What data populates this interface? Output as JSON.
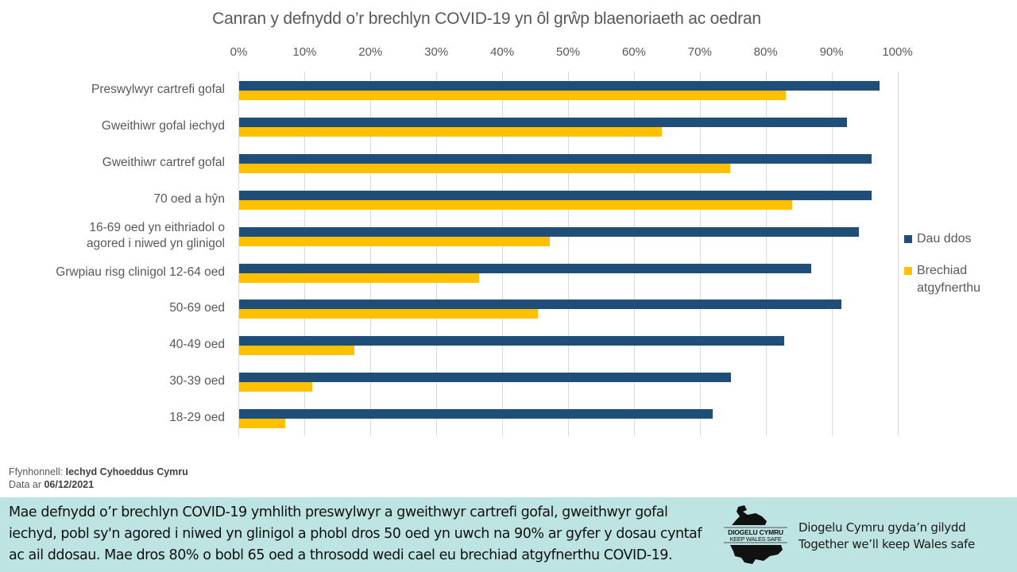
{
  "chart_data": {
    "type": "bar",
    "orientation": "horizontal",
    "title": "Canran y defnydd o’r brechlyn COVID-19 yn ôl grŵp blaenoriaeth ac oedran",
    "xlabel": "",
    "ylabel": "",
    "xlim": [
      0,
      100
    ],
    "x_ticks": [
      "0%",
      "10%",
      "20%",
      "30%",
      "40%",
      "50%",
      "60%",
      "70%",
      "80%",
      "90%",
      "100%"
    ],
    "x_axis_position": "top",
    "grid": true,
    "legend_position": "right",
    "categories": [
      "Preswylwyr cartrefi gofal",
      "Gweithiwr gofal iechyd",
      "Gweithiwr cartref gofal",
      "70 oed a hŷn",
      "16-69 oed yn eithriadol o agored i niwed yn glinigol",
      "Grwpiau risg clinigol 12-64 oed",
      "50-69 oed",
      "40-49 oed",
      "30-39 oed",
      "18-29 oed"
    ],
    "series": [
      {
        "name": "Dau ddos",
        "color": "#1f4e79",
        "values": [
          97.2,
          92.3,
          96.0,
          96.0,
          94.1,
          86.8,
          91.4,
          82.8,
          74.7,
          71.9
        ]
      },
      {
        "name": "Brechiad atgyfnerthu",
        "color": "#ffc000",
        "values": [
          83.0,
          64.2,
          74.5,
          84.0,
          47.2,
          36.4,
          45.3,
          17.5,
          11.1,
          7.0
        ]
      }
    ]
  },
  "category_labels": [
    [
      "Preswylwyr cartrefi gofal"
    ],
    [
      "Gweithiwr gofal iechyd"
    ],
    [
      "Gweithiwr cartref gofal"
    ],
    [
      "70 oed a hŷn"
    ],
    [
      "16-69 oed yn eithriadol o",
      "agored i niwed yn glinigol"
    ],
    [
      "Grwpiau risg clinigol 12-64 oed"
    ],
    [
      "50-69 oed"
    ],
    [
      "40-49 oed"
    ],
    [
      "30-39 oed"
    ],
    [
      "18-29 oed"
    ]
  ],
  "legend": {
    "items": [
      {
        "label": "Dau ddos",
        "color": "#1f4e79"
      },
      {
        "label": "Brechiad atgyfnerthu",
        "color": "#ffc000"
      }
    ]
  },
  "source": {
    "label": "Ffynhonnell:",
    "value": "Iechyd Cyhoeddus Cymru",
    "date_label": "Data ar",
    "date_value": "06/12/2021"
  },
  "footer": {
    "summary": "Mae defnydd o’r brechlyn COVID-19 ymhlith preswylwyr a gweithwyr cartrefi gofal, gweithwyr gofal iechyd, pobl sy'n agored i niwed yn glinigol a phobl dros 50 oed yn uwch na 90% ar gyfer y dosau cyntaf ac ail ddosau. Mae dros 80% o bobl 65 oed a throsodd wedi cael eu brechiad atgyfnerthu COVID-19.",
    "logo_line1": "DIOGELU CYMRU",
    "logo_line2": "KEEP WALES SAFE",
    "tagline_cy": "Diogelu Cymru gyda’n gilydd",
    "tagline_en": "Together we’ll keep Wales safe",
    "background": "#bde3e3"
  }
}
